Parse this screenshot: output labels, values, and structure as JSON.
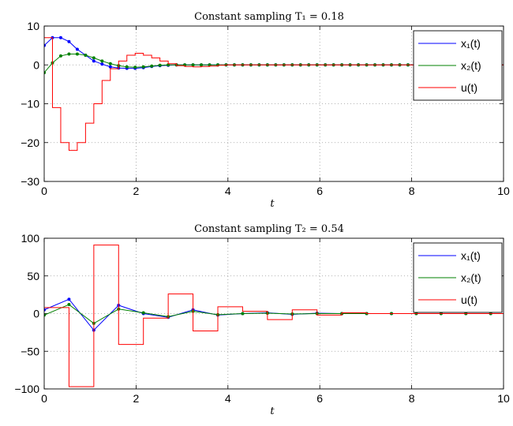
{
  "chart_data": [
    {
      "type": "line",
      "title": "Constant sampling T₁ = 0.18",
      "xlabel": "t",
      "ylabel": "",
      "xlim": [
        0,
        10
      ],
      "ylim": [
        -30,
        10
      ],
      "xticks": [
        "0",
        "2",
        "4",
        "6",
        "8",
        "10"
      ],
      "yticks": [
        "−30",
        "−20",
        "−10",
        "0",
        "10"
      ],
      "grid": true,
      "legend_position": "top-right",
      "sample_period": 0.18,
      "series": [
        {
          "name": "x₁(t)",
          "color": "#0000ff",
          "style": "line-with-markers",
          "x": [
            0,
            0.18,
            0.36,
            0.54,
            0.72,
            0.9,
            1.08,
            1.26,
            1.44,
            1.62,
            1.8,
            1.98,
            2.16,
            2.34,
            2.52,
            2.7,
            2.88,
            3.06
          ],
          "y": [
            5,
            7,
            7,
            6,
            4,
            2.5,
            1,
            0.2,
            -0.5,
            -0.8,
            -0.9,
            -0.9,
            -0.7,
            -0.4,
            -0.2,
            -0.1,
            0,
            0
          ]
        },
        {
          "name": "x₂(t)",
          "color": "#008000",
          "style": "line-with-markers",
          "x": [
            0,
            0.18,
            0.36,
            0.54,
            0.72,
            0.9,
            1.08,
            1.26,
            1.44,
            1.62,
            1.8,
            1.98,
            2.16,
            2.34,
            2.52,
            2.7,
            2.88,
            3.06
          ],
          "y": [
            -2,
            0.5,
            2.3,
            2.8,
            2.8,
            2.5,
            1.8,
            1,
            0.3,
            -0.2,
            -0.5,
            -0.6,
            -0.5,
            -0.3,
            -0.1,
            0,
            0,
            0
          ]
        },
        {
          "name": "u(t)",
          "color": "#ff0000",
          "style": "step",
          "x": [
            0,
            0.18,
            0.36,
            0.54,
            0.72,
            0.9,
            1.08,
            1.26,
            1.44,
            1.62,
            1.8,
            1.98,
            2.16,
            2.34,
            2.52,
            2.7,
            2.88,
            3.06,
            3.24,
            3.42,
            3.6,
            3.78,
            3.96,
            4.14
          ],
          "y": [
            7,
            -11,
            -20,
            -22,
            -20,
            -15,
            -10,
            -4,
            -1,
            1,
            2.5,
            3,
            2.5,
            1.8,
            1,
            0.3,
            -0.2,
            -0.4,
            -0.5,
            -0.4,
            -0.3,
            -0.1,
            0,
            0
          ]
        }
      ]
    },
    {
      "type": "line",
      "title": "Constant sampling T₂ = 0.54",
      "xlabel": "t",
      "ylabel": "",
      "xlim": [
        0,
        10
      ],
      "ylim": [
        -100,
        100
      ],
      "xticks": [
        "0",
        "2",
        "4",
        "6",
        "8",
        "10"
      ],
      "yticks": [
        "−100",
        "−50",
        "0",
        "50",
        "100"
      ],
      "grid": true,
      "legend_position": "top-right",
      "sample_period": 0.54,
      "series": [
        {
          "name": "x₁(t)",
          "color": "#0000ff",
          "style": "line-with-markers",
          "x": [
            0,
            0.54,
            1.08,
            1.62,
            2.16,
            2.7,
            3.24,
            3.78,
            4.32,
            4.86,
            5.4,
            5.94,
            6.48,
            7.02,
            7.56,
            8.1,
            8.64,
            9.18,
            9.72
          ],
          "y": [
            5,
            19,
            -22,
            11,
            0,
            -5,
            5,
            -2,
            0,
            1,
            -1,
            0.5,
            0,
            0,
            0,
            0,
            0,
            0,
            0
          ]
        },
        {
          "name": "x₂(t)",
          "color": "#008000",
          "style": "line-with-markers",
          "x": [
            0,
            0.54,
            1.08,
            1.62,
            2.16,
            2.7,
            3.24,
            3.78,
            4.32,
            4.86,
            5.4,
            5.94,
            6.48,
            7.02,
            7.56,
            8.1,
            8.64,
            9.18,
            9.72
          ],
          "y": [
            -2,
            12,
            -13,
            6,
            1,
            -4,
            3,
            -1.5,
            0,
            0.5,
            -0.5,
            0,
            0,
            0,
            0,
            0,
            0,
            0,
            0
          ]
        },
        {
          "name": "u(t)",
          "color": "#ff0000",
          "style": "step",
          "x": [
            0,
            0.54,
            1.08,
            1.62,
            2.16,
            2.7,
            3.24,
            3.78,
            4.32,
            4.86,
            5.4,
            5.94,
            6.48,
            7.02,
            7.56,
            8.1,
            8.64,
            9.18,
            9.72
          ],
          "y": [
            8,
            -97,
            91,
            -41,
            -6,
            26,
            -23,
            9,
            3,
            -8,
            5,
            -2,
            1,
            0,
            0,
            0,
            0,
            0,
            0
          ]
        }
      ]
    }
  ]
}
